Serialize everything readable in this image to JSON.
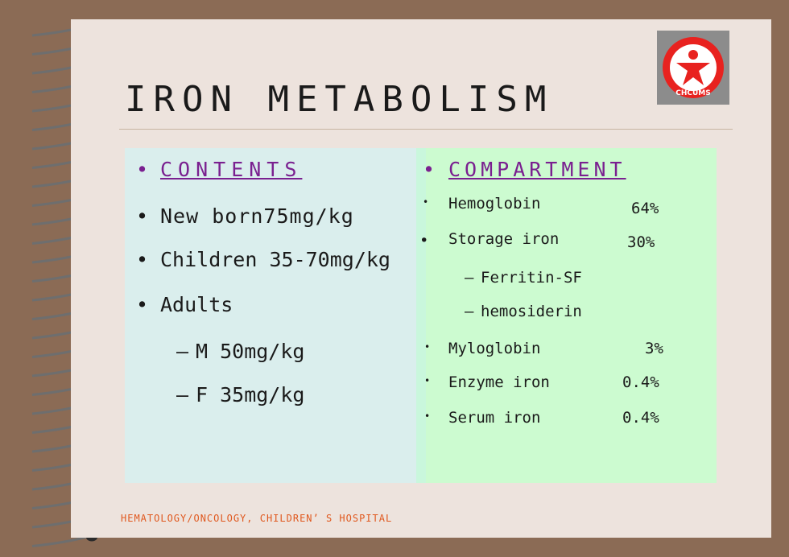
{
  "slide": {
    "title": "IRON METABOLISM",
    "logo_text": "CHCUMS",
    "footer": "HEMATOLOGY/ONCOLOGY, CHILDREN’ S HOSPITAL"
  },
  "left_column": {
    "heading": "CONTENTS",
    "items": [
      "New born75mg/kg",
      "Children 35-70mg/kg",
      "Adults"
    ],
    "sub_items": [
      "M 50mg/kg",
      "F 35mg/kg"
    ]
  },
  "right_column": {
    "heading": "COMPARTMENT",
    "rows": [
      {
        "label": "Hemoglobin",
        "value": "64%"
      },
      {
        "label": "Storage iron",
        "value": "30%"
      },
      {
        "label": "Ferritin-SF",
        "value": ""
      },
      {
        "label": "hemosiderin",
        "value": ""
      },
      {
        "label": "Myloglobin",
        "value": "3%"
      },
      {
        "label": "Enzyme iron",
        "value": "0.4%"
      },
      {
        "label": "Serum iron",
        "value": "0.4%"
      }
    ]
  },
  "colors": {
    "heading": "#7a2090",
    "footer": "#e0581e",
    "left_panel": "#daeeed",
    "right_panel": "#ccfbd0",
    "logo_red": "#e8221f"
  }
}
